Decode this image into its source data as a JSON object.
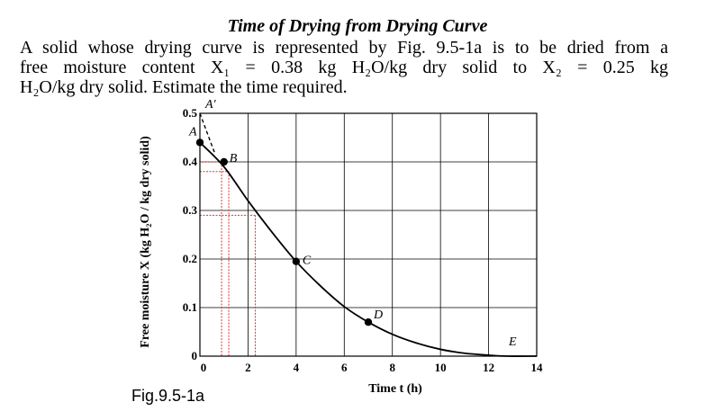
{
  "page": {
    "title": "Time of Drying from Drying Curve",
    "problem_lines": [
      "A solid whose drying curve is represented by Fig. 9.5-1a is to be dried from a",
      "free moisture content X₁ = 0.38 kg H₂O/kg dry solid to X₂ = 0.25 kg",
      "H₂O/kg dry solid. Estimate the time required."
    ],
    "figure_caption": "Fig.9.5-1a"
  },
  "chart_data": {
    "type": "line",
    "title": "",
    "xlabel": "Time t (h)",
    "ylabel": "Free moisture X (kg H₂O / kg dry solid)",
    "xlim": [
      0,
      14
    ],
    "ylim": [
      0,
      0.5
    ],
    "x_ticks": [
      0,
      2,
      4,
      6,
      8,
      10,
      12,
      14
    ],
    "y_ticks": [
      0,
      0.1,
      0.2,
      0.3,
      0.4,
      0.5
    ],
    "x_tick_labels": [
      "0",
      "2",
      "4",
      "6",
      "8",
      "10",
      "12",
      "14"
    ],
    "y_tick_labels": [
      "0",
      "0.1",
      "0.2",
      "0.3",
      "0.4",
      "0.5"
    ],
    "grid": true,
    "series": [
      {
        "values": [
          {
            "x": 0.0,
            "y": 0.44
          },
          {
            "x": 1.0,
            "y": 0.39
          },
          {
            "x": 2.0,
            "y": 0.32
          },
          {
            "x": 3.0,
            "y": 0.255
          },
          {
            "x": 4.0,
            "y": 0.195
          },
          {
            "x": 5.0,
            "y": 0.145
          },
          {
            "x": 6.0,
            "y": 0.102
          },
          {
            "x": 7.0,
            "y": 0.07
          },
          {
            "x": 8.0,
            "y": 0.045
          },
          {
            "x": 9.0,
            "y": 0.027
          },
          {
            "x": 10.0,
            "y": 0.014
          },
          {
            "x": 11.0,
            "y": 0.006
          },
          {
            "x": 12.0,
            "y": 0.002
          },
          {
            "x": 12.8,
            "y": 0.0
          },
          {
            "x": 14.0,
            "y": 0.0
          }
        ]
      }
    ],
    "dashed_segment": [
      {
        "x": 0.0,
        "y": 0.5
      },
      {
        "x": 0.6,
        "y": 0.42
      }
    ],
    "points": [
      {
        "label": "A′",
        "x": 0.0,
        "y": 0.5
      },
      {
        "label": "A",
        "x": 0.0,
        "y": 0.44
      },
      {
        "label": "B",
        "x": 1.0,
        "y": 0.4
      },
      {
        "label": "C",
        "x": 4.0,
        "y": 0.195
      },
      {
        "label": "D",
        "x": 7.0,
        "y": 0.07
      },
      {
        "label": "E",
        "x": 13.0,
        "y": 0.0
      }
    ],
    "reference_lines": [
      {
        "y": 0.4,
        "x_to": 0.9,
        "color": "#e03030"
      },
      {
        "y": 0.38,
        "x_to": 1.2,
        "color": "#e03030"
      },
      {
        "y": 0.29,
        "x_to": 2.3,
        "color": "#e03030"
      }
    ],
    "colors": {
      "curve": "#000000",
      "grid": "#000000",
      "guides": "#e03030"
    }
  }
}
